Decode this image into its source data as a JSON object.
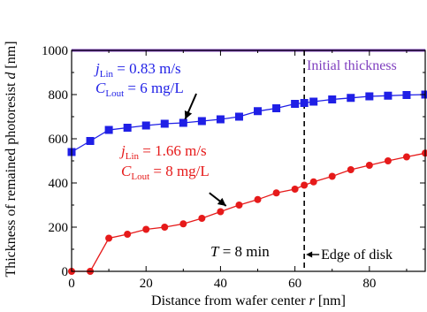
{
  "chart_data": {
    "type": "line",
    "title": "",
    "xlabel": {
      "prefix": "Distance from wafer center ",
      "var": "r",
      "suffix": " [nm]"
    },
    "ylabel": {
      "prefix": "Thickness of remained photoresist ",
      "var": "d",
      "suffix": " [nm]"
    },
    "xlim": [
      0,
      95
    ],
    "ylim": [
      0,
      1000
    ],
    "xticks": [
      0,
      20,
      40,
      60,
      80
    ],
    "yticks": [
      0,
      200,
      400,
      600,
      800,
      1000
    ],
    "grid": false,
    "initial_thickness": {
      "value": 1000,
      "label": "Initial thickness",
      "color": "#7f3fbf"
    },
    "edge_of_disk": {
      "x": 62.5,
      "label": "Edge of disk"
    },
    "time_label": {
      "var": "T",
      "rest": " = 8 min"
    },
    "series": [
      {
        "color": "#1f1fe6",
        "marker": "square",
        "label": {
          "j": "0.83 m/s",
          "c": "6 mg/L"
        },
        "x": [
          0,
          5,
          10,
          15,
          20,
          25,
          30,
          35,
          40,
          45,
          50,
          55,
          60,
          62.5,
          65,
          70,
          75,
          80,
          85,
          90,
          95
        ],
        "y": [
          540,
          590,
          640,
          650,
          660,
          668,
          672,
          680,
          688,
          700,
          725,
          738,
          758,
          762,
          768,
          778,
          785,
          792,
          795,
          798,
          800
        ]
      },
      {
        "color": "#e61a1a",
        "marker": "circle",
        "label": {
          "j": "1.66 m/s",
          "c": "8 mg/L"
        },
        "x": [
          0,
          5,
          10,
          15,
          20,
          25,
          30,
          35,
          40,
          45,
          50,
          55,
          60,
          62.5,
          65,
          70,
          75,
          80,
          85,
          90,
          95
        ],
        "y": [
          0,
          0,
          150,
          168,
          190,
          200,
          215,
          240,
          270,
          300,
          325,
          355,
          372,
          390,
          405,
          430,
          460,
          480,
          500,
          518,
          535
        ]
      }
    ]
  }
}
